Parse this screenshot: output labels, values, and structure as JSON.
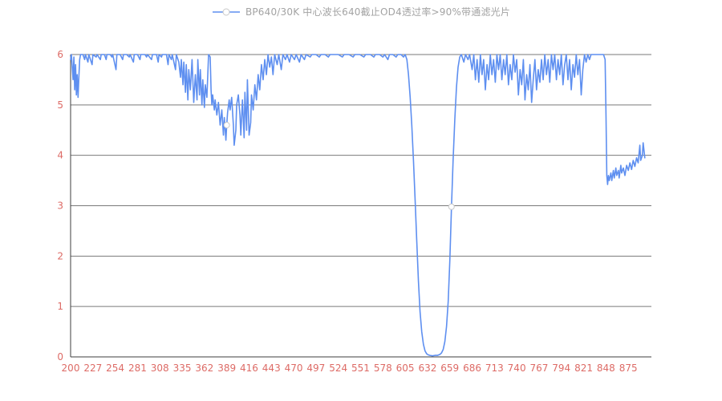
{
  "legend": {
    "label": "BP640/30K 中心波长640截止OD4透过率>90%带通滤光片",
    "marker": "line-with-circle-marker",
    "text_color": "#a3a3a3"
  },
  "chart_data": {
    "type": "line",
    "title": "BP640/30K 中心波长640截止OD4透过率>90%带通滤光片",
    "xlabel": "",
    "ylabel": "",
    "xlim": [
      200,
      903
    ],
    "ylim": [
      0,
      6
    ],
    "xticks": [
      200,
      227,
      254,
      281,
      308,
      335,
      362,
      389,
      416,
      443,
      470,
      497,
      524,
      551,
      578,
      605,
      632,
      659,
      686,
      713,
      740,
      767,
      794,
      821,
      848,
      875
    ],
    "yticks": [
      0,
      1,
      2,
      3,
      4,
      5,
      6
    ],
    "grid": "horizontal",
    "legend_position": "top-center",
    "line_color": "#5e8ff0",
    "tick_label_color": "#dd6b66",
    "grid_color": "#7a7a7a",
    "axis_color": "#3c3c3c",
    "markers": [
      [
        389,
        4.6
      ],
      [
        661,
        2.98
      ]
    ],
    "series": [
      {
        "name": "BP640/30K 中心波长640截止OD4透过率>90%带通滤光片",
        "points": [
          [
            200,
            5.9
          ],
          [
            201,
            6
          ],
          [
            203,
            5.5
          ],
          [
            204,
            5.95
          ],
          [
            205,
            5.3
          ],
          [
            206,
            5.8
          ],
          [
            207,
            5.2
          ],
          [
            208,
            5.6
          ],
          [
            209,
            5.15
          ],
          [
            210,
            5.55
          ],
          [
            211,
            5.9
          ],
          [
            212,
            6
          ],
          [
            215,
            6
          ],
          [
            217,
            5.9
          ],
          [
            218,
            6
          ],
          [
            221,
            5.85
          ],
          [
            222,
            6
          ],
          [
            226,
            5.8
          ],
          [
            227,
            6
          ],
          [
            231,
            5.95
          ],
          [
            232,
            6
          ],
          [
            236,
            5.9
          ],
          [
            237,
            6
          ],
          [
            241,
            6
          ],
          [
            243,
            5.9
          ],
          [
            244,
            6
          ],
          [
            248,
            6
          ],
          [
            250,
            5.95
          ],
          [
            251,
            6
          ],
          [
            255,
            5.7
          ],
          [
            256,
            6
          ],
          [
            260,
            6
          ],
          [
            263,
            5.9
          ],
          [
            264,
            6
          ],
          [
            268,
            6
          ],
          [
            271,
            5.95
          ],
          [
            272,
            6
          ],
          [
            276,
            5.85
          ],
          [
            277,
            6
          ],
          [
            281,
            6
          ],
          [
            284,
            5.9
          ],
          [
            285,
            6
          ],
          [
            290,
            6
          ],
          [
            292,
            5.95
          ],
          [
            293,
            6
          ],
          [
            298,
            5.9
          ],
          [
            299,
            6
          ],
          [
            304,
            6
          ],
          [
            306,
            5.85
          ],
          [
            307,
            6
          ],
          [
            310,
            5.95
          ],
          [
            311,
            6
          ],
          [
            316,
            6
          ],
          [
            318,
            5.8
          ],
          [
            319,
            6
          ],
          [
            322,
            5.9
          ],
          [
            323,
            6
          ],
          [
            327,
            5.7
          ],
          [
            328,
            6
          ],
          [
            331,
            5.85
          ],
          [
            333,
            5.55
          ],
          [
            334,
            5.9
          ],
          [
            336,
            5.4
          ],
          [
            337,
            5.85
          ],
          [
            339,
            5.25
          ],
          [
            340,
            5.8
          ],
          [
            342,
            5.1
          ],
          [
            343,
            5.7
          ],
          [
            345,
            5.3
          ],
          [
            347,
            5.9
          ],
          [
            349,
            5.05
          ],
          [
            351,
            5.6
          ],
          [
            353,
            5.1
          ],
          [
            354,
            5.9
          ],
          [
            356,
            5.2
          ],
          [
            357,
            5.7
          ],
          [
            359,
            5.0
          ],
          [
            360,
            5.5
          ],
          [
            362,
            4.95
          ],
          [
            363,
            5.4
          ],
          [
            365,
            5.15
          ],
          [
            367,
            6
          ],
          [
            369,
            5.95
          ],
          [
            370,
            5.3
          ],
          [
            371,
            5.0
          ],
          [
            372,
            5.2
          ],
          [
            374,
            4.9
          ],
          [
            375,
            5.1
          ],
          [
            377,
            4.8
          ],
          [
            379,
            5.05
          ],
          [
            381,
            4.6
          ],
          [
            383,
            4.9
          ],
          [
            385,
            4.4
          ],
          [
            386,
            4.75
          ],
          [
            388,
            4.3
          ],
          [
            389,
            4.6
          ],
          [
            390,
            4.85
          ],
          [
            392,
            5.1
          ],
          [
            393,
            4.9
          ],
          [
            395,
            5.15
          ],
          [
            397,
            4.6
          ],
          [
            398,
            4.2
          ],
          [
            400,
            4.5
          ],
          [
            401,
            5.0
          ],
          [
            403,
            5.2
          ],
          [
            405,
            4.8
          ],
          [
            406,
            4.4
          ],
          [
            408,
            5.1
          ],
          [
            410,
            4.35
          ],
          [
            411,
            5.25
          ],
          [
            413,
            4.5
          ],
          [
            414,
            5.5
          ],
          [
            416,
            4.4
          ],
          [
            418,
            4.65
          ],
          [
            419,
            5.2
          ],
          [
            421,
            4.9
          ],
          [
            423,
            5.4
          ],
          [
            425,
            5.1
          ],
          [
            427,
            5.6
          ],
          [
            429,
            5.3
          ],
          [
            431,
            5.8
          ],
          [
            433,
            5.5
          ],
          [
            435,
            5.9
          ],
          [
            437,
            5.6
          ],
          [
            439,
            6
          ],
          [
            441,
            5.75
          ],
          [
            443,
            5.95
          ],
          [
            445,
            5.6
          ],
          [
            447,
            6
          ],
          [
            450,
            5.8
          ],
          [
            452,
            6
          ],
          [
            455,
            5.7
          ],
          [
            457,
            6
          ],
          [
            460,
            5.9
          ],
          [
            462,
            6
          ],
          [
            465,
            5.85
          ],
          [
            467,
            6
          ],
          [
            471,
            5.9
          ],
          [
            473,
            6
          ],
          [
            477,
            5.85
          ],
          [
            479,
            6
          ],
          [
            483,
            5.9
          ],
          [
            485,
            6
          ],
          [
            490,
            5.95
          ],
          [
            492,
            6
          ],
          [
            497,
            6
          ],
          [
            501,
            5.95
          ],
          [
            503,
            6
          ],
          [
            508,
            6
          ],
          [
            512,
            5.95
          ],
          [
            514,
            6
          ],
          [
            519,
            6
          ],
          [
            524,
            6
          ],
          [
            529,
            5.95
          ],
          [
            531,
            6
          ],
          [
            537,
            6
          ],
          [
            542,
            5.95
          ],
          [
            544,
            6
          ],
          [
            550,
            6
          ],
          [
            555,
            5.95
          ],
          [
            557,
            6
          ],
          [
            563,
            6
          ],
          [
            567,
            5.95
          ],
          [
            569,
            6
          ],
          [
            574,
            6
          ],
          [
            578,
            5.95
          ],
          [
            580,
            6
          ],
          [
            584,
            5.9
          ],
          [
            586,
            6
          ],
          [
            590,
            6
          ],
          [
            594,
            5.95
          ],
          [
            596,
            6
          ],
          [
            600,
            6
          ],
          [
            603,
            5.95
          ],
          [
            605,
            6
          ],
          [
            607,
            5.9
          ],
          [
            609,
            5.6
          ],
          [
            611,
            5.15
          ],
          [
            613,
            4.6
          ],
          [
            615,
            3.9
          ],
          [
            617,
            3.1
          ],
          [
            619,
            2.3
          ],
          [
            621,
            1.5
          ],
          [
            623,
            0.9
          ],
          [
            625,
            0.5
          ],
          [
            627,
            0.25
          ],
          [
            629,
            0.12
          ],
          [
            631,
            0.06
          ],
          [
            633,
            0.04
          ],
          [
            635,
            0.03
          ],
          [
            638,
            0.02
          ],
          [
            641,
            0.03
          ],
          [
            644,
            0.03
          ],
          [
            647,
            0.05
          ],
          [
            649,
            0.08
          ],
          [
            651,
            0.15
          ],
          [
            653,
            0.3
          ],
          [
            655,
            0.6
          ],
          [
            657,
            1.1
          ],
          [
            659,
            1.9
          ],
          [
            661,
            2.98
          ],
          [
            663,
            3.9
          ],
          [
            665,
            4.7
          ],
          [
            667,
            5.35
          ],
          [
            669,
            5.75
          ],
          [
            671,
            5.95
          ],
          [
            673,
            6
          ],
          [
            676,
            5.85
          ],
          [
            678,
            6
          ],
          [
            681,
            5.9
          ],
          [
            683,
            6
          ],
          [
            686,
            5.7
          ],
          [
            688,
            6
          ],
          [
            690,
            5.5
          ],
          [
            692,
            5.9
          ],
          [
            694,
            5.45
          ],
          [
            696,
            6
          ],
          [
            698,
            5.6
          ],
          [
            700,
            5.9
          ],
          [
            702,
            5.3
          ],
          [
            704,
            5.8
          ],
          [
            706,
            5.5
          ],
          [
            708,
            6
          ],
          [
            710,
            5.6
          ],
          [
            712,
            5.9
          ],
          [
            714,
            5.45
          ],
          [
            716,
            6
          ],
          [
            718,
            5.7
          ],
          [
            720,
            6
          ],
          [
            722,
            5.5
          ],
          [
            724,
            5.9
          ],
          [
            726,
            5.6
          ],
          [
            728,
            6
          ],
          [
            730,
            5.4
          ],
          [
            732,
            5.8
          ],
          [
            734,
            5.5
          ],
          [
            736,
            6
          ],
          [
            738,
            5.65
          ],
          [
            740,
            5.9
          ],
          [
            742,
            5.2
          ],
          [
            744,
            5.7
          ],
          [
            746,
            5.4
          ],
          [
            748,
            5.9
          ],
          [
            750,
            5.1
          ],
          [
            752,
            5.6
          ],
          [
            754,
            5.3
          ],
          [
            756,
            5.8
          ],
          [
            758,
            5.05
          ],
          [
            760,
            5.5
          ],
          [
            762,
            5.9
          ],
          [
            764,
            5.3
          ],
          [
            766,
            5.7
          ],
          [
            768,
            5.45
          ],
          [
            770,
            5.9
          ],
          [
            772,
            5.5
          ],
          [
            774,
            6
          ],
          [
            776,
            5.6
          ],
          [
            778,
            5.9
          ],
          [
            780,
            5.45
          ],
          [
            782,
            6
          ],
          [
            784,
            5.7
          ],
          [
            786,
            6
          ],
          [
            788,
            5.5
          ],
          [
            790,
            5.9
          ],
          [
            792,
            5.6
          ],
          [
            794,
            6
          ],
          [
            796,
            5.4
          ],
          [
            798,
            5.8
          ],
          [
            800,
            6
          ],
          [
            802,
            5.5
          ],
          [
            804,
            5.9
          ],
          [
            806,
            5.3
          ],
          [
            808,
            5.8
          ],
          [
            810,
            5.55
          ],
          [
            812,
            6
          ],
          [
            814,
            5.6
          ],
          [
            816,
            5.9
          ],
          [
            818,
            5.2
          ],
          [
            820,
            5.7
          ],
          [
            822,
            6
          ],
          [
            824,
            5.85
          ],
          [
            826,
            6
          ],
          [
            828,
            5.9
          ],
          [
            830,
            6
          ],
          [
            833,
            6
          ],
          [
            836,
            6
          ],
          [
            839,
            6
          ],
          [
            842,
            6
          ],
          [
            845,
            6
          ],
          [
            847,
            5.9
          ],
          [
            848,
            4.8
          ],
          [
            849,
            3.6
          ],
          [
            850,
            3.42
          ],
          [
            851,
            3.6
          ],
          [
            852,
            3.5
          ],
          [
            854,
            3.65
          ],
          [
            855,
            3.5
          ],
          [
            857,
            3.7
          ],
          [
            858,
            3.55
          ],
          [
            860,
            3.75
          ],
          [
            861,
            3.6
          ],
          [
            863,
            3.7
          ],
          [
            864,
            3.55
          ],
          [
            866,
            3.8
          ],
          [
            867,
            3.65
          ],
          [
            869,
            3.75
          ],
          [
            871,
            3.6
          ],
          [
            873,
            3.8
          ],
          [
            875,
            3.7
          ],
          [
            877,
            3.85
          ],
          [
            879,
            3.72
          ],
          [
            881,
            3.9
          ],
          [
            883,
            3.78
          ],
          [
            885,
            3.95
          ],
          [
            887,
            3.85
          ],
          [
            889,
            4.2
          ],
          [
            890,
            3.9
          ],
          [
            892,
            4.0
          ],
          [
            893,
            4.25
          ],
          [
            895,
            3.95
          ]
        ]
      }
    ]
  }
}
